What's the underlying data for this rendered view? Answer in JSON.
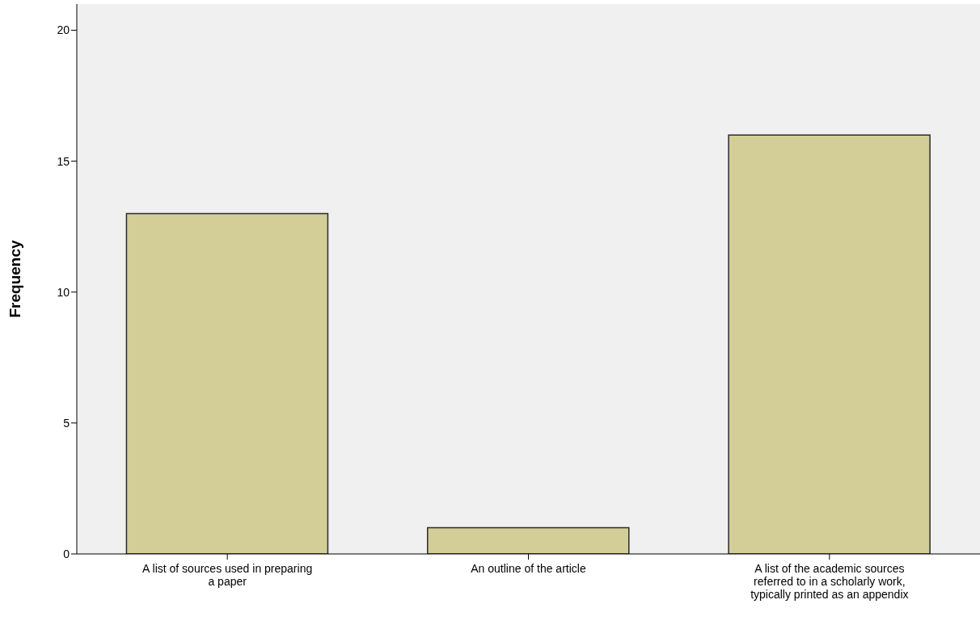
{
  "chart_data": {
    "type": "bar",
    "ylabel": "Frequency",
    "categories": [
      "A list of sources used in preparing a paper",
      "An outline of the article",
      "A list of the academic sources referred to in a scholarly work, typically printed as an appendix"
    ],
    "values": [
      13,
      1,
      16
    ],
    "color": "#d3ce97",
    "ylim": [
      0,
      21
    ],
    "yticks": [
      0,
      5,
      10,
      15,
      20
    ],
    "grid": false
  }
}
